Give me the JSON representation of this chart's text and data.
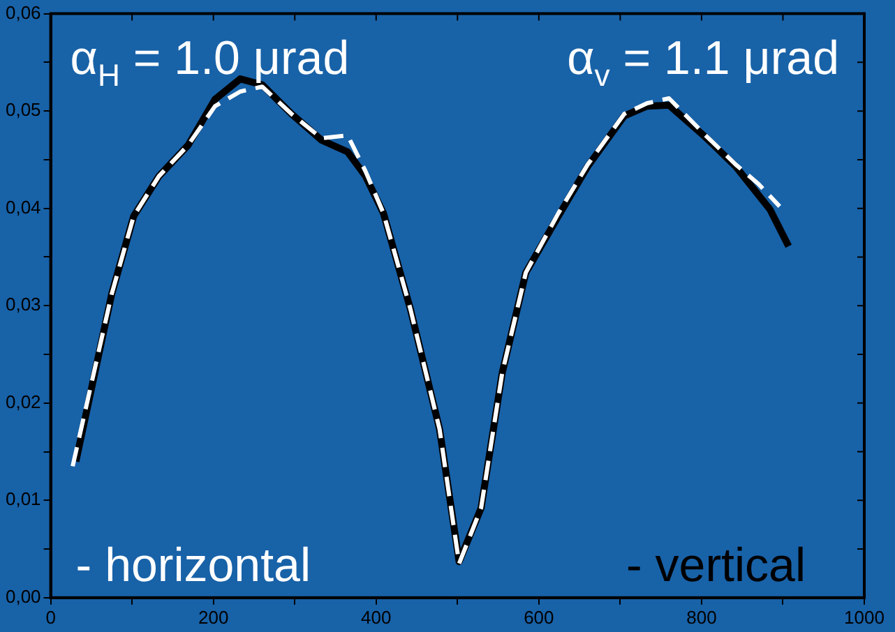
{
  "chart_data": {
    "type": "line",
    "annotations": [
      "α$_{H}$ = 1.0 μrad",
      "α$_{v}$ = 1.1 μrad"
    ],
    "xlim": [
      0,
      1000
    ],
    "xticks": [
      0,
      {
        "value": 100,
        "label": null
      },
      200,
      {
        "value": 300,
        "label": null
      },
      400,
      {
        "value": 500,
        "label": null
      },
      600,
      {
        "value": 700,
        "label": null
      },
      800,
      {
        "value": 900,
        "label": null
      },
      1000
    ],
    "ylim": [
      0,
      0.06
    ],
    "yticks": [
      {
        "value": 0,
        "label": "0,00"
      },
      {
        "value": 0.005,
        "label": null
      },
      {
        "value": 0.01,
        "label": "0,01"
      },
      {
        "value": 0.015,
        "label": null
      },
      {
        "value": 0.02,
        "label": "0,02"
      },
      {
        "value": 0.025,
        "label": null
      },
      {
        "value": 0.03,
        "label": "0,03"
      },
      {
        "value": 0.035,
        "label": null
      },
      {
        "value": 0.04,
        "label": "0,04"
      },
      {
        "value": 0.045,
        "label": null
      },
      {
        "value": 0.05,
        "label": "0,05"
      },
      {
        "value": 0.055,
        "label": null
      },
      {
        "value": 0.06,
        "label": "0,06"
      }
    ],
    "grid": false,
    "legend": "bottom",
    "marker": "none",
    "series": [
      {
        "name": "- horizontal",
        "color": "#ffffff",
        "line_style": "dashed",
        "x": [
          27,
          75,
          102,
          133,
          169,
          202,
          233,
          260,
          296,
          333,
          365,
          387,
          409,
          442,
          478,
          502,
          529,
          555,
          584,
          624,
          660,
          705,
          733,
          760,
          805,
          842,
          870,
          896
        ],
        "values": [
          0.0135,
          0.0312,
          0.0392,
          0.0433,
          0.0465,
          0.0505,
          0.052,
          0.0525,
          0.0497,
          0.0472,
          0.0475,
          0.0438,
          0.0395,
          0.0297,
          0.0173,
          0.0035,
          0.0092,
          0.0231,
          0.0334,
          0.0395,
          0.0445,
          0.0497,
          0.0508,
          0.0513,
          0.0475,
          0.0445,
          0.0425,
          0.0402
        ]
      },
      {
        "name": "- vertical",
        "color": "#000000",
        "line_style": "solid",
        "x": [
          31,
          75,
          102,
          133,
          169,
          202,
          233,
          260,
          296,
          333,
          365,
          387,
          409,
          442,
          478,
          502,
          529,
          555,
          584,
          624,
          660,
          705,
          733,
          760,
          805,
          842,
          884,
          907
        ],
        "values": [
          0.014,
          0.0312,
          0.0392,
          0.0433,
          0.0465,
          0.0512,
          0.0533,
          0.0527,
          0.0497,
          0.047,
          0.0458,
          0.0433,
          0.0395,
          0.0297,
          0.0173,
          0.0037,
          0.0092,
          0.0231,
          0.0334,
          0.0392,
          0.0443,
          0.0495,
          0.0505,
          0.0506,
          0.0473,
          0.0443,
          0.0399,
          0.0361
        ]
      }
    ]
  }
}
